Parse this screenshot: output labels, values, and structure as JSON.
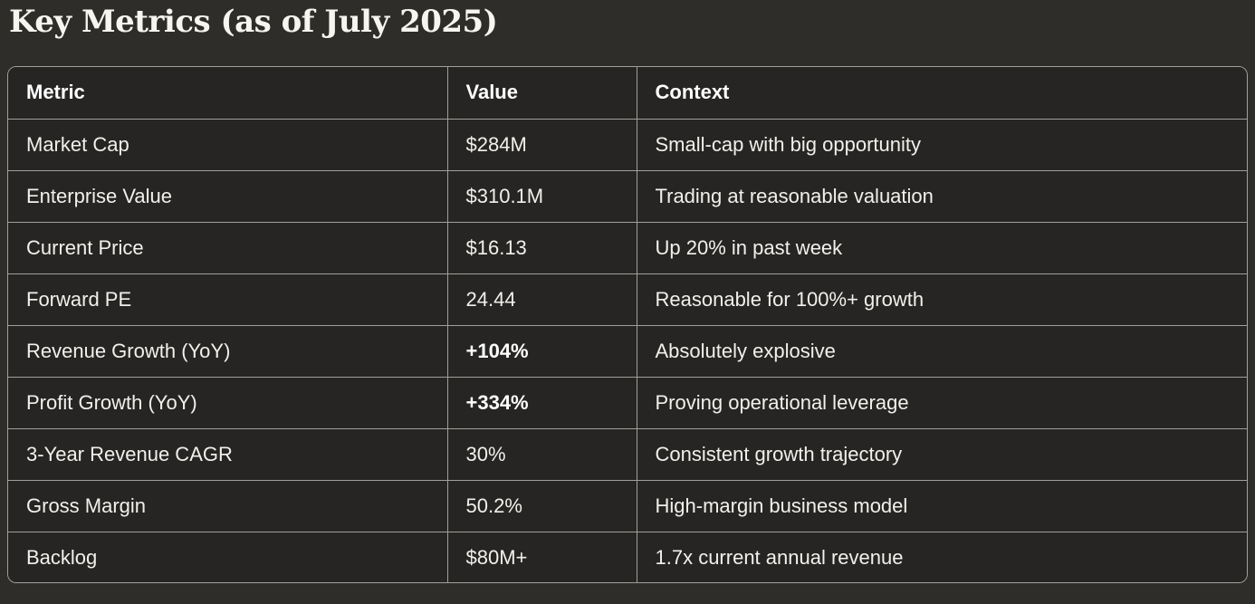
{
  "title": "Key Metrics (as of July 2025)",
  "table": {
    "columns": [
      "Metric",
      "Value",
      "Context"
    ],
    "rows": [
      {
        "metric": "Market Cap",
        "value": "$284M",
        "value_bold": false,
        "context": "Small-cap with big opportunity"
      },
      {
        "metric": "Enterprise Value",
        "value": "$310.1M",
        "value_bold": false,
        "context": "Trading at reasonable valuation"
      },
      {
        "metric": "Current Price",
        "value": "$16.13",
        "value_bold": false,
        "context": "Up 20% in past week"
      },
      {
        "metric": "Forward PE",
        "value": "24.44",
        "value_bold": false,
        "context": "Reasonable for 100%+ growth"
      },
      {
        "metric": "Revenue Growth (YoY)",
        "value": "+104%",
        "value_bold": true,
        "context": "Absolutely explosive"
      },
      {
        "metric": "Profit Growth (YoY)",
        "value": "+334%",
        "value_bold": true,
        "context": "Proving operational leverage"
      },
      {
        "metric": "3-Year Revenue CAGR",
        "value": "30%",
        "value_bold": false,
        "context": "Consistent growth trajectory"
      },
      {
        "metric": "Gross Margin",
        "value": "50.2%",
        "value_bold": false,
        "context": "High-margin business model"
      },
      {
        "metric": "Backlog",
        "value": "$80M+",
        "value_bold": false,
        "context": "1.7x current annual revenue"
      }
    ]
  },
  "colors": {
    "page_bg": "#2e2d2a",
    "cell_bg": "#262523",
    "border": "#a09f9b",
    "text": "#f2f0ec",
    "title": "#f7f5f0"
  }
}
